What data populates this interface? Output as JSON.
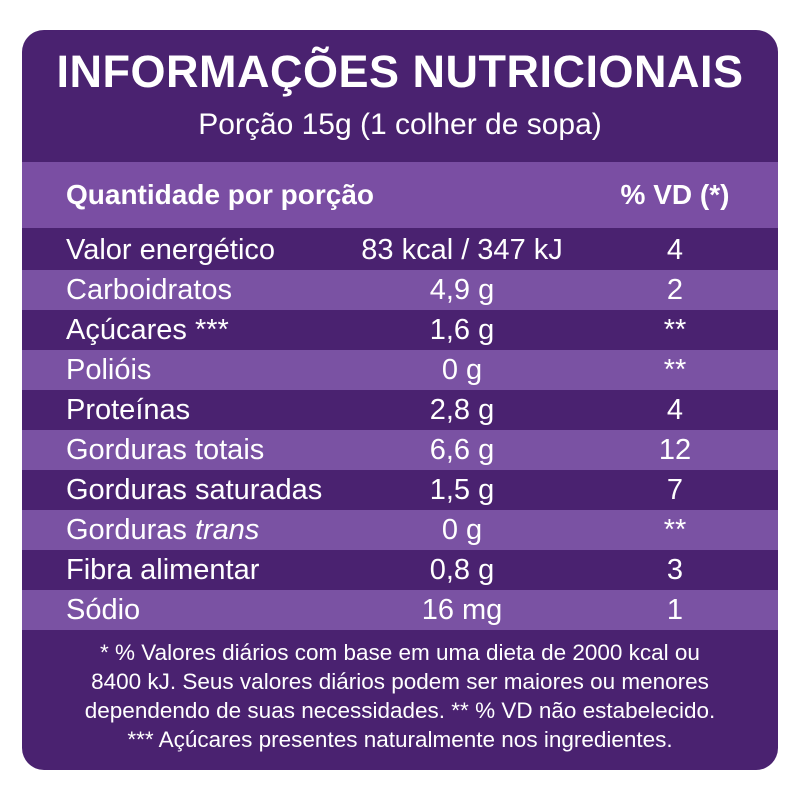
{
  "header": {
    "title": "INFORMAÇÕES NUTRICIONAIS",
    "subtitle": "Porção 15g (1 colher de sopa)"
  },
  "table": {
    "columns": {
      "name": "Quantidade por porção",
      "vd": "% VD (*)"
    },
    "rows": [
      {
        "name": "Valor energético",
        "amount": "83 kcal / 347 kJ",
        "vd": "4"
      },
      {
        "name": "Carboidratos",
        "amount": "4,9 g",
        "vd": "2"
      },
      {
        "name": "Açúcares ***",
        "amount": "1,6 g",
        "vd": "**"
      },
      {
        "name": "Polióis",
        "amount": "0 g",
        "vd": "**"
      },
      {
        "name": "Proteínas",
        "amount": "2,8 g",
        "vd": "4"
      },
      {
        "name": "Gorduras totais",
        "amount": "6,6 g",
        "vd": "12"
      },
      {
        "name": "Gorduras saturadas",
        "amount": "1,5 g",
        "vd": "7"
      },
      {
        "name": "Gorduras",
        "name_italic": "trans",
        "amount": "0 g",
        "vd": "**"
      },
      {
        "name": "Fibra alimentar",
        "amount": "0,8 g",
        "vd": "3"
      },
      {
        "name": "Sódio",
        "amount": "16 mg",
        "vd": "1"
      }
    ]
  },
  "footer": {
    "lines": [
      "* % Valores diários com base em uma dieta de 2000 kcal ou",
      "8400 kJ. Seus valores diários podem ser maiores ou menores",
      "dependendo de suas necessidades. ** % VD não estabelecido.",
      "*** Açúcares presentes naturalmente nos ingredientes."
    ]
  }
}
